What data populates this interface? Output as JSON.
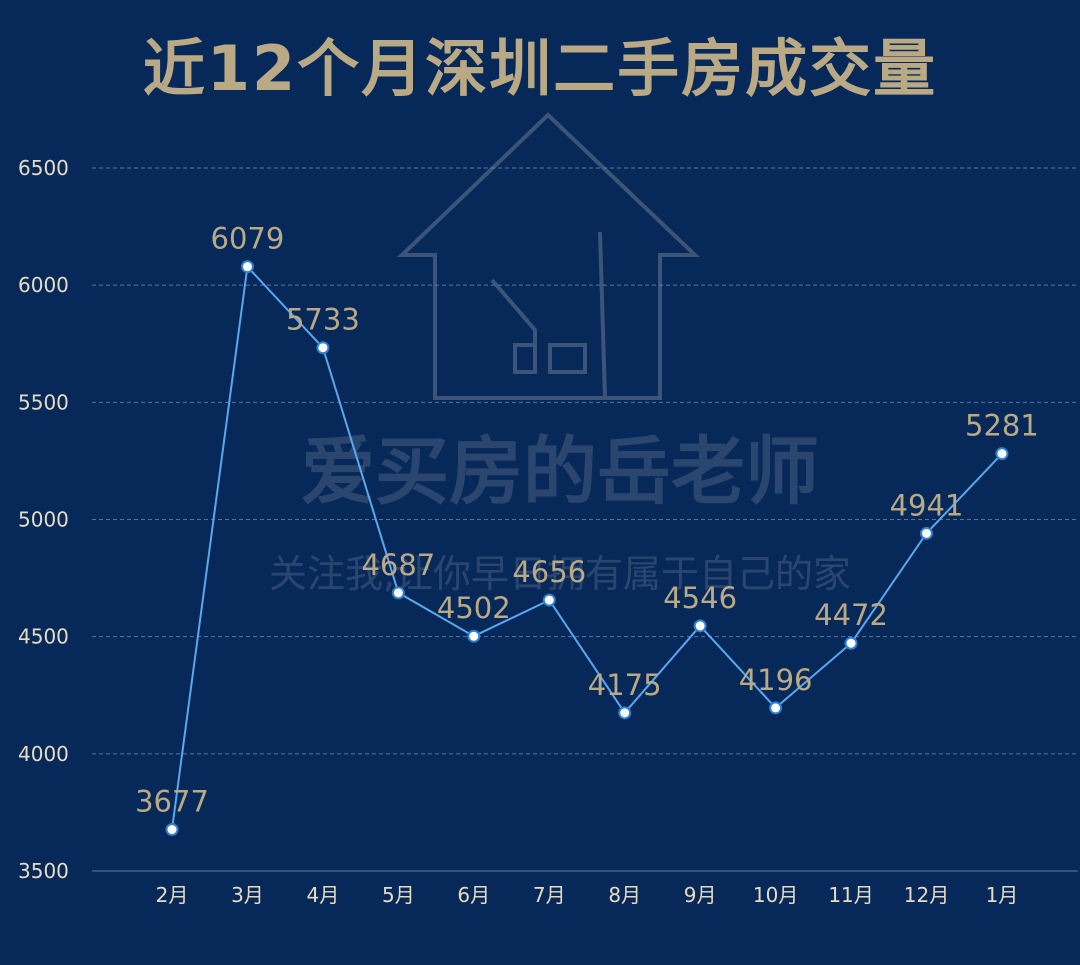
{
  "watermark": {
    "line1": "爱买房的岳老师",
    "line2": "关注我,让你早日拥有属于自己的家"
  },
  "chart_data": {
    "type": "line",
    "title": "近12个月深圳二手房成交量",
    "xlabel": "",
    "ylabel": "",
    "categories": [
      "2月",
      "3月",
      "4月",
      "5月",
      "6月",
      "7月",
      "8月",
      "9月",
      "10月",
      "11月",
      "12月",
      "1月"
    ],
    "series": [
      {
        "values": [
          3677,
          6079,
          5733,
          4687,
          4502,
          4656,
          4175,
          4546,
          4196,
          4472,
          4941,
          5281
        ]
      }
    ],
    "ylim": [
      3500,
      6500
    ],
    "yticks": [
      3500,
      4000,
      4500,
      5000,
      5500,
      6000,
      6500
    ],
    "grid": true,
    "line_color": "#5aa7ee",
    "label_color": "#b9a984",
    "background": "#06295a"
  }
}
